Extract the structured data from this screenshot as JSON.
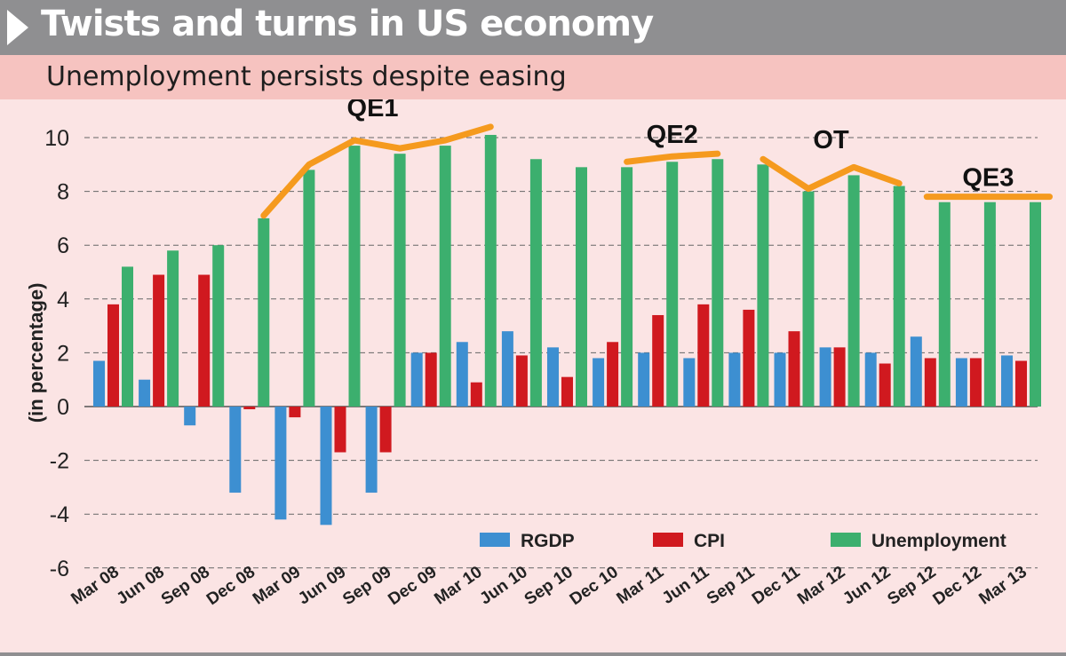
{
  "header": {
    "title": "Twists and turns in US economy",
    "subtitle": "Unemployment persists despite easing"
  },
  "colors": {
    "rgdp": "#3d8fd1",
    "cpi": "#d0191f",
    "unemployment": "#3caf6e",
    "qe_line": "#f59a1e"
  },
  "chart_data": {
    "type": "bar",
    "ylabel": "(in percentage)",
    "xlabel": "",
    "ylim": [
      -6,
      10
    ],
    "yticks": [
      10,
      8,
      6,
      4,
      2,
      0,
      -2,
      -4,
      -6
    ],
    "grid": true,
    "legend_position": "bottom-right",
    "categories": [
      "Mar 08",
      "Jun 08",
      "Sep 08",
      "Dec 08",
      "Mar 09",
      "Jun 09",
      "Sep 09",
      "Dec 09",
      "Mar 10",
      "Jun 10",
      "Sep 10",
      "Dec 10",
      "Mar 11",
      "Jun 11",
      "Sep 11",
      "Dec 11",
      "Mar 12",
      "Jun 12",
      "Sep 12",
      "Dec 12",
      "Mar 13"
    ],
    "series": [
      {
        "name": "RGDP",
        "values": [
          1.7,
          1.0,
          -0.7,
          -3.2,
          -4.2,
          -4.4,
          -3.2,
          2.0,
          2.4,
          2.8,
          2.2,
          1.8,
          2.0,
          1.8,
          2.0,
          2.0,
          2.2,
          2.0,
          2.6,
          1.8,
          1.9
        ]
      },
      {
        "name": "CPI",
        "values": [
          3.8,
          4.9,
          4.9,
          -0.1,
          -0.4,
          -1.7,
          -1.7,
          2.0,
          0.9,
          1.9,
          1.1,
          2.4,
          3.4,
          3.8,
          3.6,
          2.8,
          2.2,
          1.6,
          1.8,
          1.8,
          1.7
        ]
      },
      {
        "name": "Unemployment",
        "values": [
          5.2,
          5.8,
          6.0,
          7.0,
          8.8,
          9.7,
          9.4,
          9.7,
          10.1,
          9.2,
          8.9,
          8.9,
          9.1,
          9.2,
          9.0,
          8.0,
          8.6,
          8.2,
          7.6,
          7.6,
          7.6
        ]
      }
    ],
    "annotations": [
      {
        "label": "QE1",
        "points": [
          [
            3,
            7.1
          ],
          [
            4,
            9.0
          ],
          [
            5,
            9.9
          ],
          [
            6,
            9.6
          ],
          [
            7,
            9.9
          ],
          [
            8,
            10.4
          ]
        ]
      },
      {
        "label": "QE2",
        "points": [
          [
            11,
            9.1
          ],
          [
            12,
            9.3
          ],
          [
            13,
            9.4
          ]
        ]
      },
      {
        "label": "OT",
        "points": [
          [
            14,
            9.2
          ],
          [
            15,
            8.1
          ],
          [
            16,
            8.9
          ],
          [
            17,
            8.3
          ]
        ]
      },
      {
        "label": "QE3",
        "points": [
          [
            18,
            7.8
          ],
          [
            19,
            7.8
          ],
          [
            20,
            7.8
          ]
        ]
      }
    ]
  }
}
